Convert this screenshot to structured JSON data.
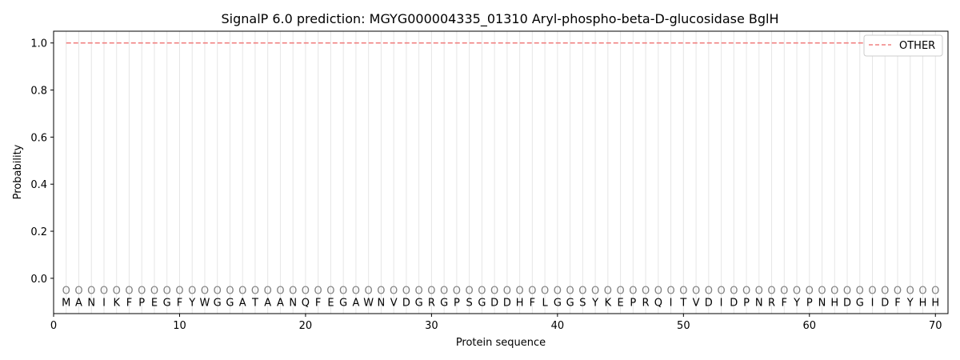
{
  "chart_data": {
    "type": "line",
    "title": "SignalP 6.0 prediction: MGYG000004335_01310 Aryl-phospho-beta-D-glucosidase BglH",
    "xlabel": "Protein sequence",
    "ylabel": "Probability",
    "xlim": [
      0,
      71
    ],
    "ylim": [
      -0.15,
      1.05
    ],
    "x_ticks": [
      0,
      10,
      20,
      30,
      40,
      50,
      60,
      70
    ],
    "y_ticks": [
      0.0,
      0.2,
      0.4,
      0.6,
      0.8,
      1.0
    ],
    "x_tick_labels": [
      "0",
      "10",
      "20",
      "30",
      "40",
      "50",
      "60",
      "70"
    ],
    "y_tick_labels": [
      "0.0",
      "0.2",
      "0.4",
      "0.6",
      "0.8",
      "1.0"
    ],
    "sequence": [
      "M",
      "A",
      "N",
      "I",
      "K",
      "F",
      "P",
      "E",
      "G",
      "F",
      "Y",
      "W",
      "G",
      "G",
      "A",
      "T",
      "A",
      "A",
      "N",
      "Q",
      "F",
      "E",
      "G",
      "A",
      "W",
      "N",
      "V",
      "D",
      "G",
      "R",
      "G",
      "P",
      "S",
      "G",
      "D",
      "D",
      "H",
      "F",
      "L",
      "G",
      "G",
      "S",
      "Y",
      "K",
      "E",
      "P",
      "R",
      "Q",
      "I",
      "T",
      "V",
      "D",
      "I",
      "D",
      "P",
      "N",
      "R",
      "F",
      "Y",
      "P",
      "N",
      "H",
      "D",
      "G",
      "I",
      "D",
      "F",
      "Y",
      "H",
      "H"
    ],
    "region_label": "O",
    "series": [
      {
        "name": "OTHER",
        "color": "#f08080",
        "style": "dashed",
        "x_start": 1,
        "x_end": 70,
        "value": 1.0
      }
    ],
    "legend_position": "top-right",
    "grid": "vertical lines at each residue"
  }
}
